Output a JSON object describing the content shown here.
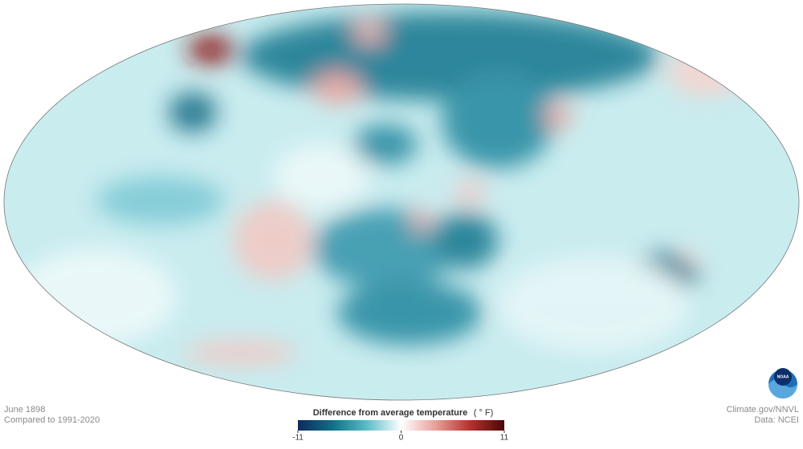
{
  "map": {
    "date": "June 1898",
    "baseline": "Compared to 1991-2020",
    "credit": "Climate.gov/NNVL",
    "source": "Data: NCEI",
    "logo": "NOAA",
    "legend": {
      "title": "Difference from average temperature",
      "unit": "( ° F)",
      "range": [
        -11,
        11
      ],
      "ticks": [
        -11,
        0,
        11
      ],
      "colors": [
        "#0e2a5e",
        "#0f6f86",
        "#5bbcc8",
        "#ffffff",
        "#e9a09a",
        "#b4322f",
        "#4a0808"
      ]
    }
  }
}
